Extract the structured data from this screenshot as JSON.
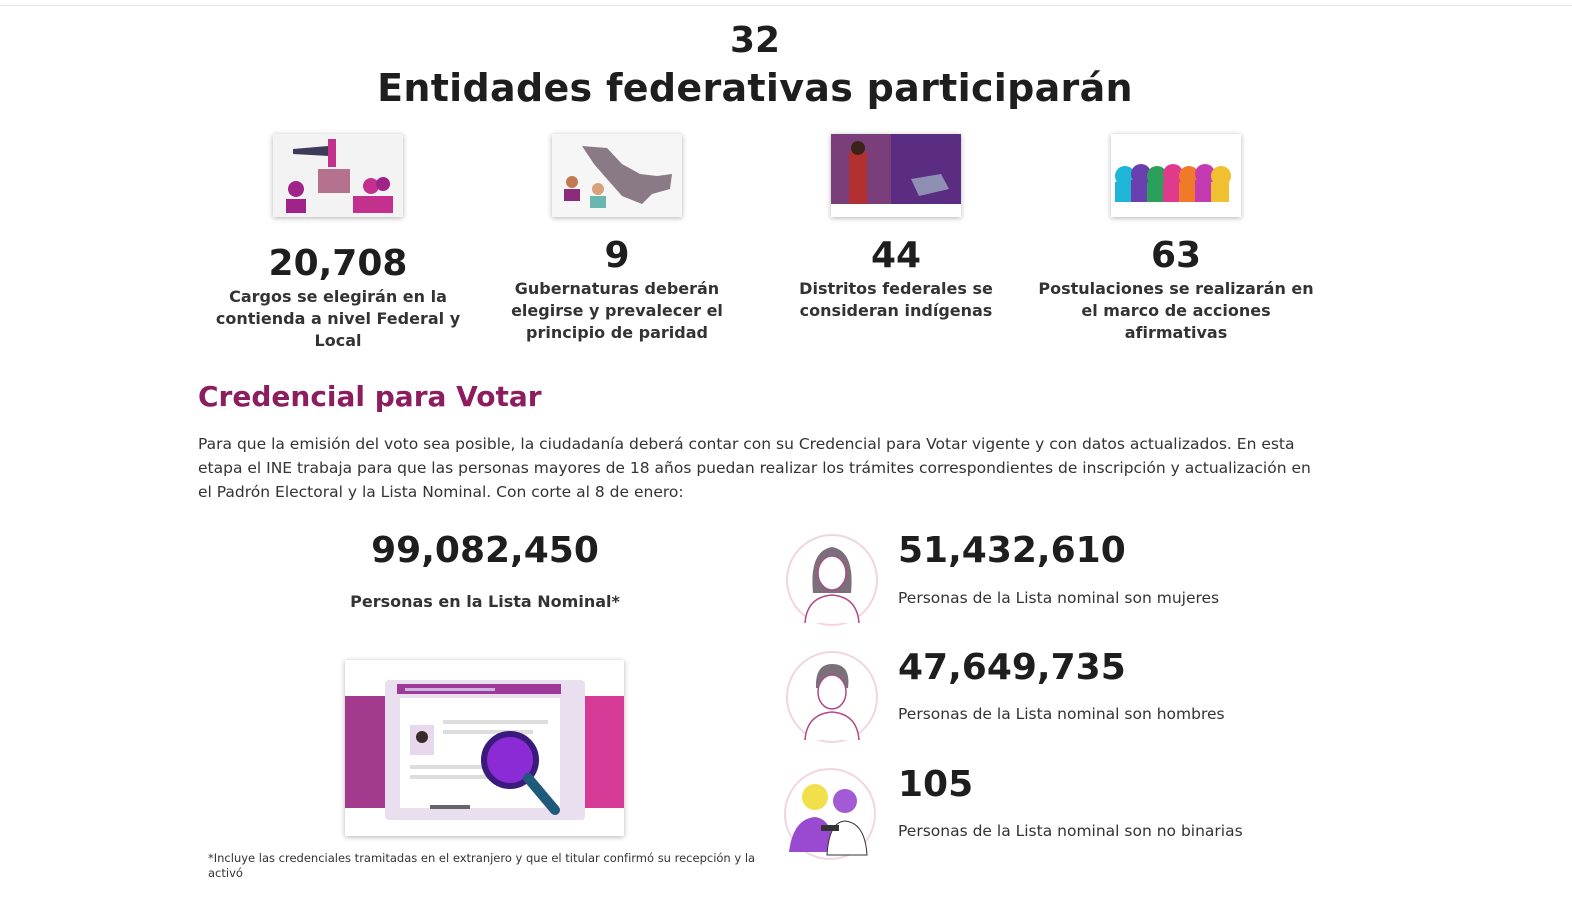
{
  "header": {
    "number": "32",
    "title": "Entidades federativas participarán"
  },
  "stats": [
    {
      "value": "20,708",
      "label": "Cargos se elegirán en la contienda a nivel Federal y Local"
    },
    {
      "value": "9",
      "label": "Gubernaturas deberán elegirse y prevalecer el principio de paridad"
    },
    {
      "value": "44",
      "label": "Distritos federales se consideran indígenas"
    },
    {
      "value": "63",
      "label": "Postulaciones se realizarán en el marco de acciones afirmativas"
    }
  ],
  "section": {
    "title": "Credencial para Votar",
    "paragraph": "Para que la emisión del voto sea posible, la ciudadanía deberá contar con su Credencial para Votar vigente y con datos actualizados. En esta etapa el INE trabaja para que las personas mayores de 18 años puedan realizar los trámites correspondientes de inscripción y actualización en el Padrón Electoral y la Lista Nominal. Con corte al 8 de enero:"
  },
  "total": {
    "value": "99,082,450",
    "label": "Personas en la Lista Nominal*"
  },
  "breakdown": [
    {
      "value": "51,432,610",
      "label": "Personas de la Lista nominal son mujeres"
    },
    {
      "value": "47,649,735",
      "label": "Personas de la Lista nominal son hombres"
    },
    {
      "value": "105",
      "label": "Personas de la Lista nominal son no binarias"
    }
  ],
  "footnote": "*Incluye las credenciales tramitadas en el extranjero y que el titular confirmó su recepción y la activó"
}
